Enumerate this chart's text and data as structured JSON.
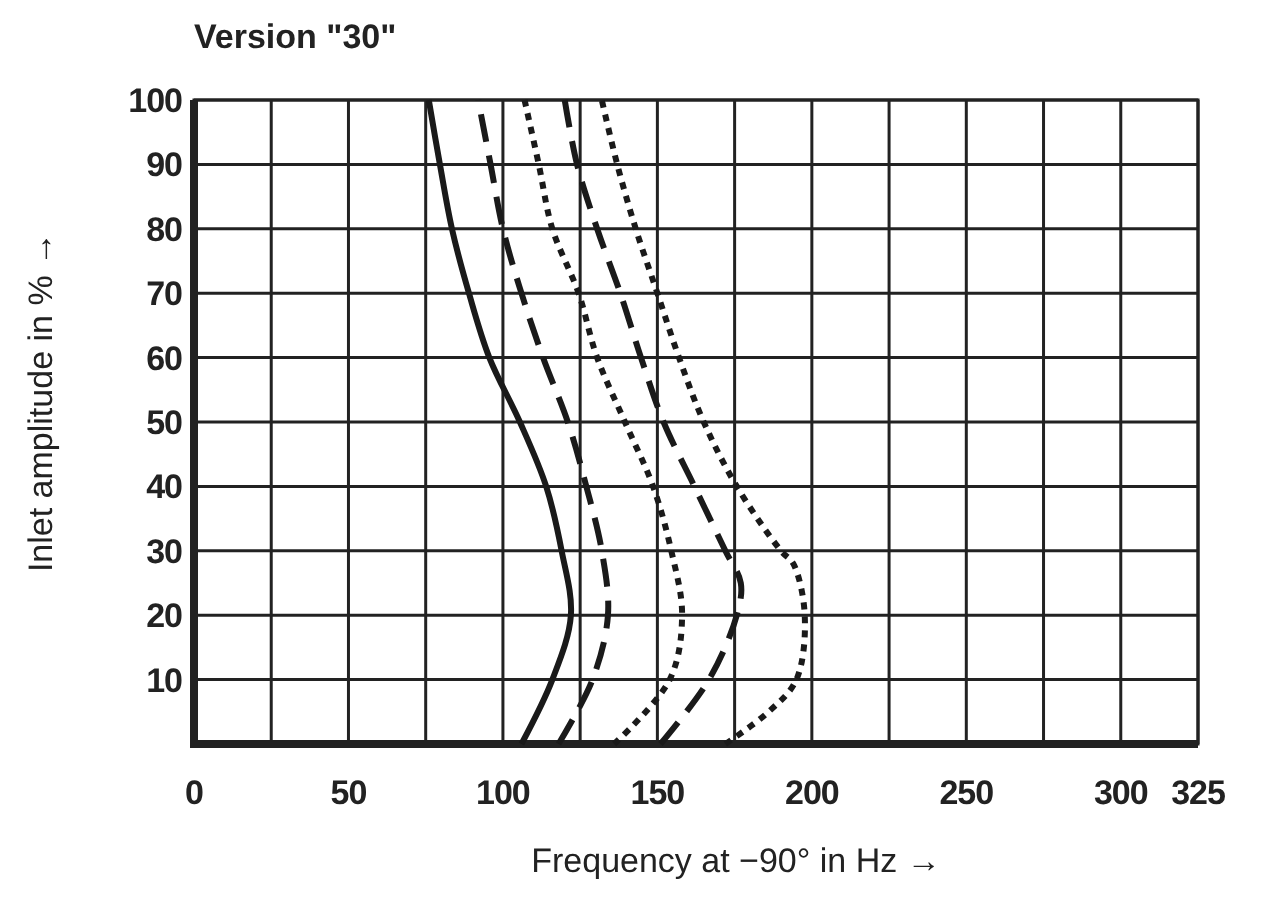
{
  "chart_data": {
    "type": "line",
    "title": "Version \"30\"",
    "xlabel": "Frequency at −90° in Hz →",
    "ylabel": "Inlet amplitude in % →",
    "xlim": [
      0,
      325
    ],
    "ylim": [
      0,
      100
    ],
    "xticks": [
      0,
      {
        "value": 25,
        "label": null
      },
      50,
      {
        "value": 75,
        "label": null
      },
      100,
      {
        "value": 125,
        "label": null
      },
      150,
      {
        "value": 175,
        "label": null
      },
      200,
      {
        "value": 225,
        "label": null
      },
      250,
      {
        "value": 275,
        "label": null
      },
      300,
      325
    ],
    "yticks": [
      {
        "value": 0,
        "label": null
      },
      10,
      20,
      30,
      40,
      50,
      60,
      70,
      80,
      90,
      100
    ],
    "grid": true,
    "marker": "none",
    "series": [
      {
        "color": "#1a1a1a",
        "line_style": "solid",
        "x": [
          106,
          116,
          122,
          119,
          114,
          105.5,
          95.6,
          89,
          83.5,
          79.6,
          76
        ],
        "values": [
          0,
          10,
          20,
          30,
          40,
          50,
          60,
          70,
          80,
          90,
          100
        ]
      },
      {
        "color": "#1a1a1a",
        "line_style": "dashed",
        "x": [
          118,
          129,
          134,
          132,
          127,
          121,
          113,
          106,
          100,
          96,
          92
        ],
        "values": [
          0,
          10,
          20,
          30,
          40,
          50,
          60,
          70,
          80,
          90,
          100
        ]
      },
      {
        "color": "#1a1a1a",
        "line_style": "dotted",
        "x": [
          136,
          154,
          158,
          154.5,
          148.6,
          139.5,
          130.5,
          124.5,
          116,
          111.6,
          107
        ],
        "values": [
          0,
          10,
          20,
          30,
          40,
          50,
          60,
          70,
          80,
          90,
          100
        ]
      },
      {
        "color": "#1a1a1a",
        "line_style": "dashed",
        "x": [
          151,
          166.7,
          175.7,
          177,
          172,
          162,
          152,
          144.7,
          138,
          130.5,
          124,
          120
        ],
        "values": [
          0,
          10,
          20,
          25,
          30,
          40,
          50,
          60,
          70,
          80,
          90,
          100
        ]
      },
      {
        "color": "#1a1a1a",
        "line_style": "dotted",
        "x": [
          172,
          186,
          195,
          197.7,
          194,
          190,
          175.7,
          165,
          157,
          150,
          143,
          137,
          132
        ],
        "values": [
          0,
          5,
          10,
          20,
          28,
          30,
          40,
          50,
          60,
          70,
          80,
          90,
          100
        ]
      }
    ]
  }
}
